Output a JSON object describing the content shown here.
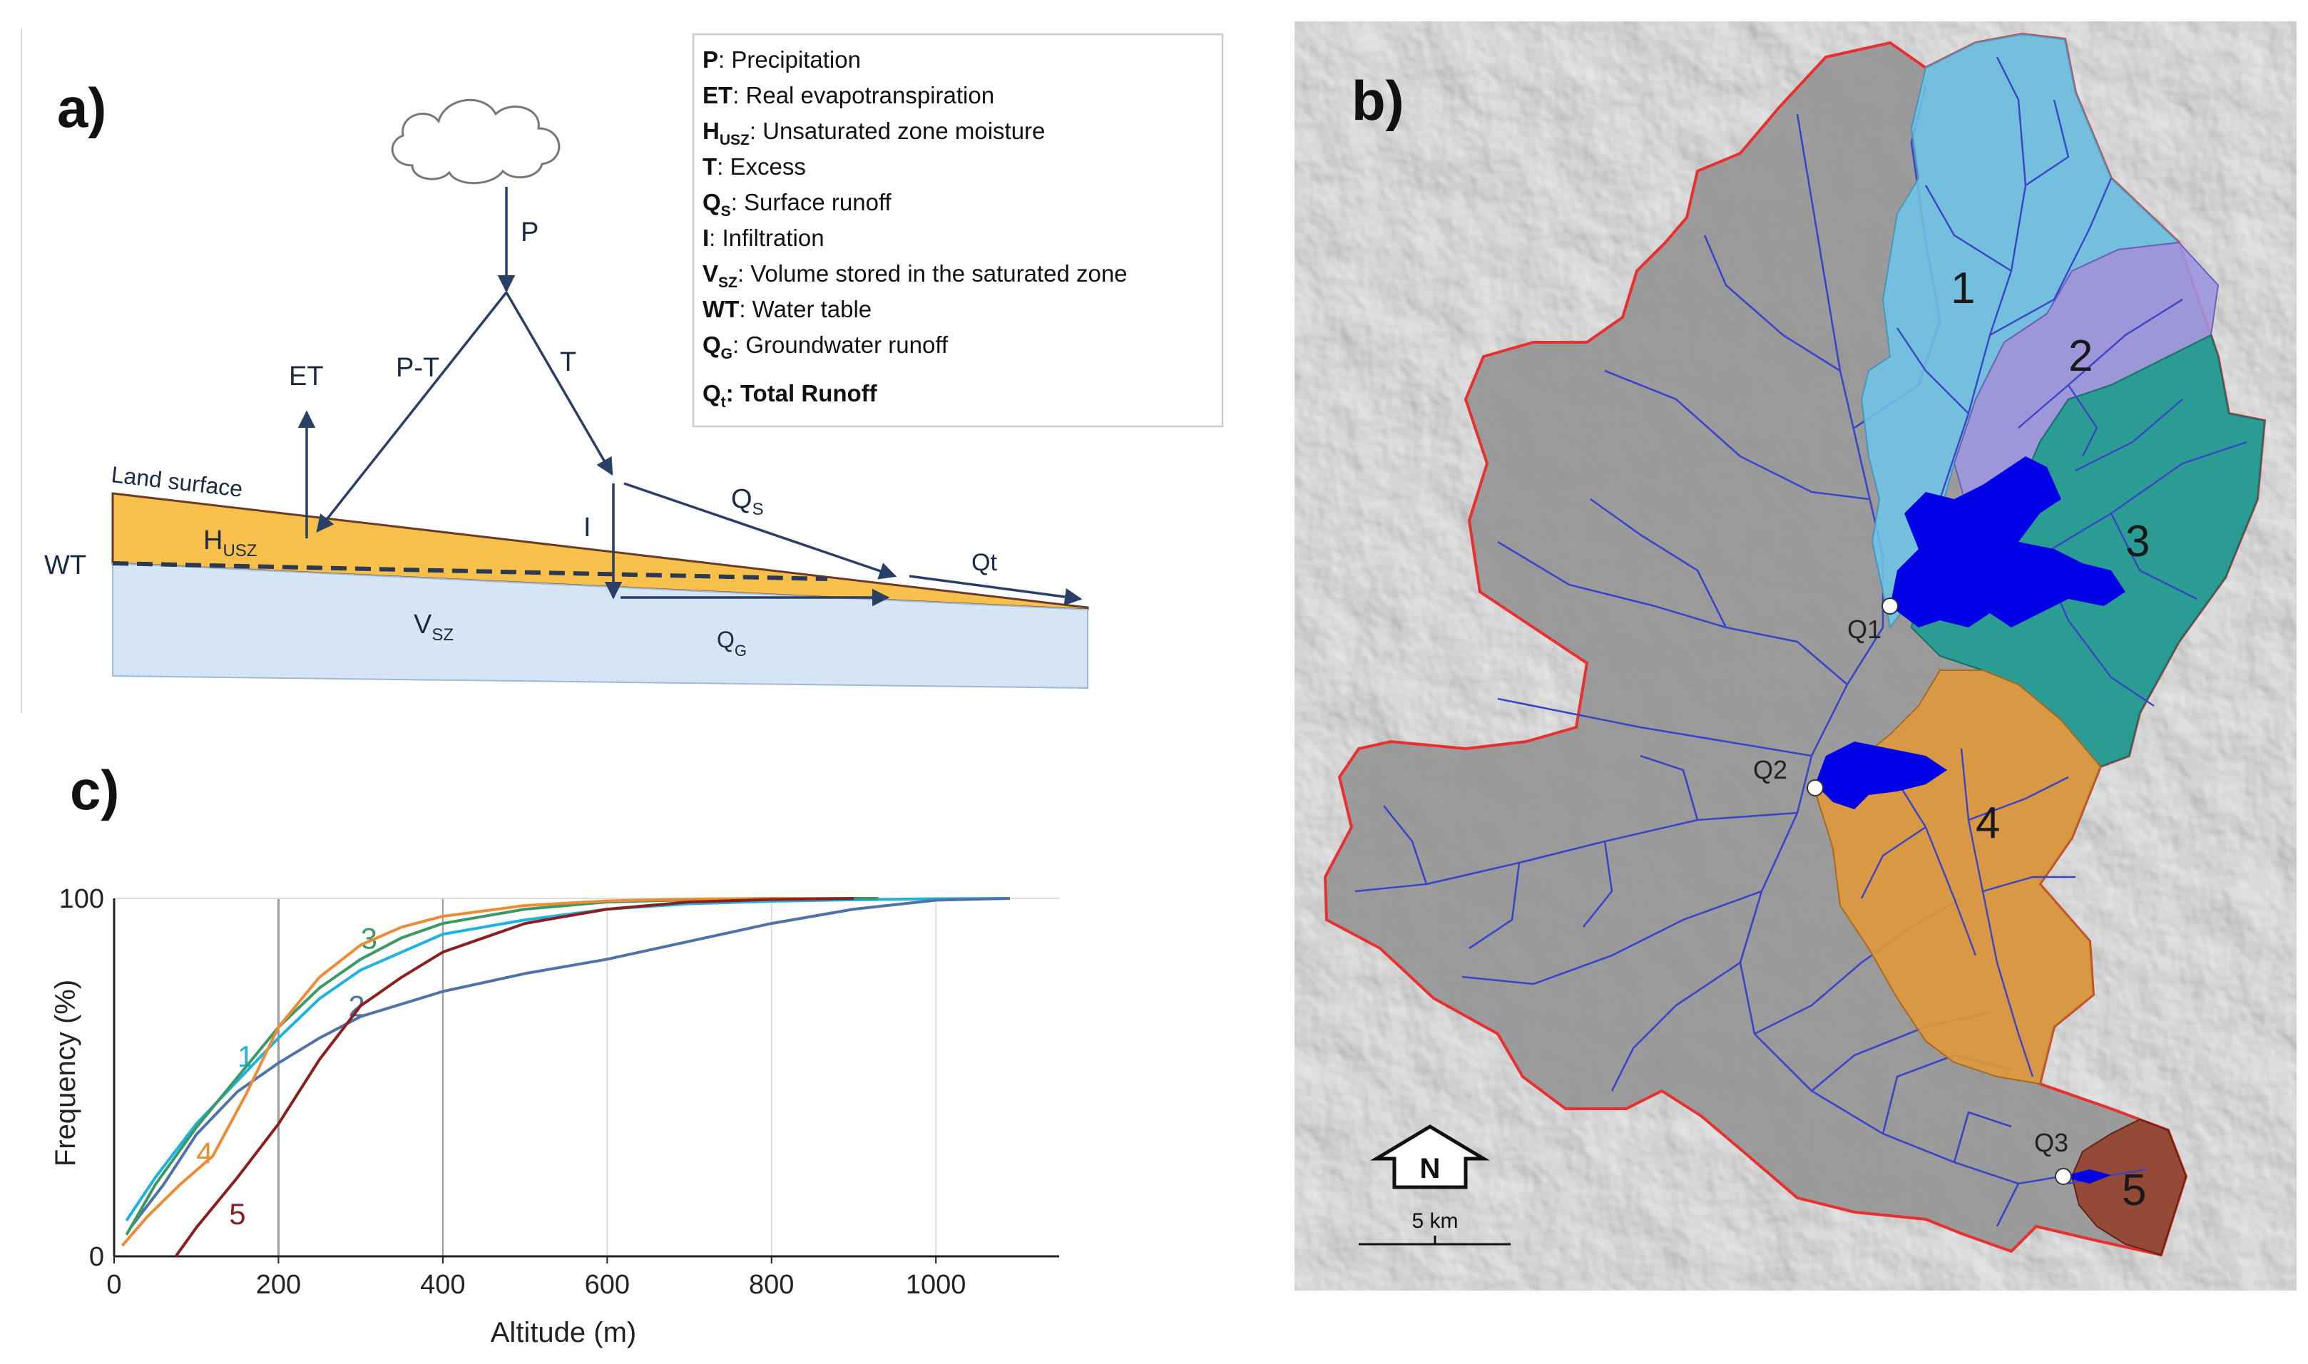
{
  "panel_a": {
    "label": "a)",
    "flux": {
      "p": "P",
      "et": "ET",
      "pt": "P-T",
      "t": "T",
      "i": "I",
      "qs": "Q",
      "qs_sub": "S",
      "qt": "Qt",
      "qg": "Q",
      "qg_sub": "G",
      "husz": "H",
      "husz_sub": "USZ",
      "vsz": "V",
      "vsz_sub": "SZ",
      "wt": "WT",
      "land": "Land surface"
    },
    "legend": [
      {
        "sym": "P",
        "sub": "",
        "text": ": Precipitation",
        "bold": false
      },
      {
        "sym": "ET",
        "sub": "",
        "text": ": Real evapotranspiration",
        "bold": false
      },
      {
        "sym": "H",
        "sub": "USZ",
        "text": ": Unsaturated zone moisture",
        "bold": false
      },
      {
        "sym": "T",
        "sub": "",
        "text": ": Excess",
        "bold": false
      },
      {
        "sym": "Q",
        "sub": "S",
        "text": ": Surface runoff",
        "bold": false
      },
      {
        "sym": "I",
        "sub": "",
        "text": ": Infiltration",
        "bold": false
      },
      {
        "sym": "V",
        "sub": "SZ",
        "text": ": Volume stored in the saturated zone",
        "bold": false
      },
      {
        "sym": "WT",
        "sub": "",
        "text": ": Water table",
        "bold": false
      },
      {
        "sym": "Q",
        "sub": "G",
        "text": ": Groundwater runoff",
        "bold": false
      },
      {
        "sym": "Q",
        "sub": "t",
        "text": ": Total Runoff",
        "bold": true
      }
    ],
    "colors": {
      "unsaturated": "#f7c04a",
      "saturated": "#d6e6f7",
      "arrow": "#2a3f66"
    }
  },
  "panel_b": {
    "label": "b)",
    "subbasins": [
      {
        "id": "1",
        "color": "#6ec6ea"
      },
      {
        "id": "2",
        "color": "#9d96e0"
      },
      {
        "id": "3",
        "color": "#1f9c93"
      },
      {
        "id": "4",
        "color": "#e0983a"
      },
      {
        "id": "5",
        "color": "#93412c"
      }
    ],
    "gauges": [
      "Q1",
      "Q2",
      "Q3"
    ],
    "north": "N",
    "scale": "5 km",
    "colors": {
      "boundary": "#e8302f",
      "rivers": "#3a44c8",
      "reservoir": "#0000e6"
    }
  },
  "panel_c": {
    "label": "c)",
    "chart_data": {
      "type": "line",
      "xlabel": "Altitude (m)",
      "ylabel": "Frequency (%)",
      "xlim": [
        0,
        1150
      ],
      "ylim": [
        0,
        100
      ],
      "xticks": [
        0,
        200,
        400,
        600,
        800,
        1000
      ],
      "yticks": [
        0,
        100
      ],
      "vgrid": [
        200,
        400,
        600,
        800,
        1000
      ],
      "series": [
        {
          "name": "1",
          "color": "#1fb1e0",
          "label_at": [
            150,
            53
          ],
          "x": [
            15,
            50,
            100,
            150,
            200,
            250,
            300,
            400,
            500,
            600,
            700,
            800,
            900,
            1000,
            1090
          ],
          "y": [
            10,
            22,
            37,
            49,
            61,
            72,
            80,
            90,
            94,
            97,
            98.5,
            99.2,
            99.6,
            99.9,
            100
          ]
        },
        {
          "name": "2",
          "color": "#4f73a8",
          "label_at": [
            285,
            67
          ],
          "x": [
            20,
            60,
            100,
            150,
            200,
            250,
            300,
            400,
            500,
            600,
            700,
            800,
            900,
            1000,
            1090
          ],
          "y": [
            8,
            20,
            34,
            46,
            54,
            61,
            67,
            74,
            79,
            83,
            88,
            93,
            97,
            99.5,
            100
          ]
        },
        {
          "name": "3",
          "color": "#3a9a63",
          "label_at": [
            300,
            86
          ],
          "x": [
            15,
            50,
            100,
            150,
            200,
            250,
            300,
            350,
            400,
            500,
            600,
            700,
            800,
            900,
            930
          ],
          "y": [
            6,
            20,
            36,
            50,
            64,
            75,
            83,
            89,
            93,
            97,
            99,
            99.6,
            99.9,
            100,
            100
          ]
        },
        {
          "name": "4",
          "color": "#ef8b32",
          "label_at": [
            100,
            26
          ],
          "x": [
            10,
            40,
            80,
            120,
            160,
            200,
            250,
            300,
            350,
            400,
            500,
            600,
            700,
            800,
            900
          ],
          "y": [
            3,
            11,
            20,
            28,
            45,
            64,
            78,
            87,
            92,
            95,
            98,
            99.3,
            99.8,
            100,
            100
          ]
        },
        {
          "name": "5",
          "color": "#8b1f1f",
          "label_at": [
            140,
            9
          ],
          "x": [
            75,
            100,
            150,
            200,
            250,
            300,
            350,
            400,
            450,
            500,
            600,
            700,
            800,
            900
          ],
          "y": [
            0,
            8,
            22,
            37,
            55,
            70,
            78,
            85,
            89,
            93,
            97,
            99,
            99.7,
            100
          ]
        }
      ]
    }
  }
}
